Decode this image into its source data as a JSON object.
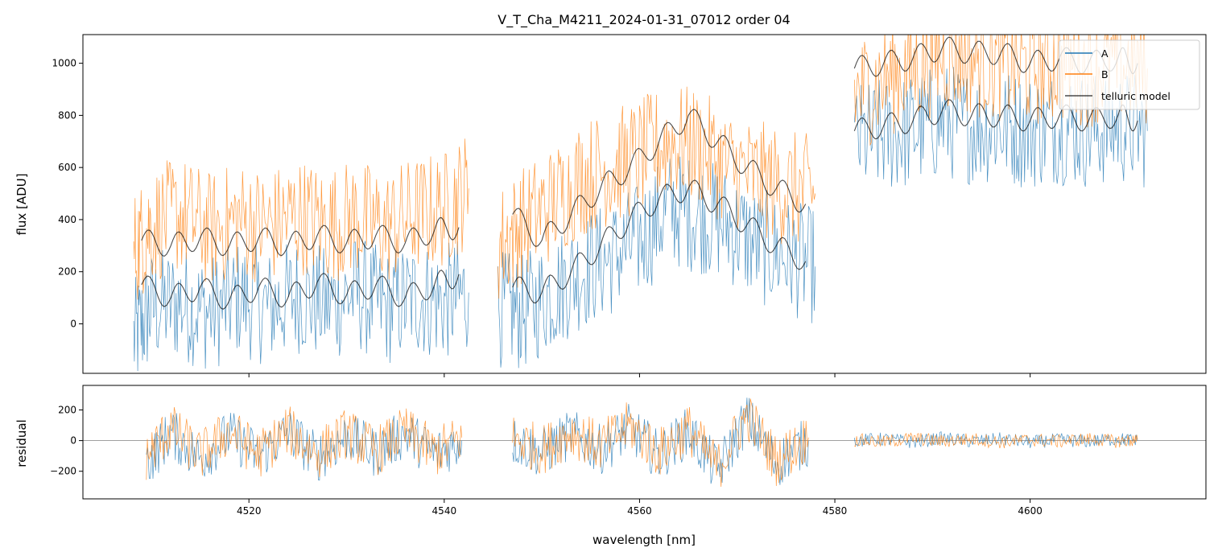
{
  "figure": {
    "title": "V_T_Cha_M4211_2024-01-31_07012  order 04"
  },
  "chart_data": [
    {
      "type": "line",
      "panel": "top",
      "title": "V_T_Cha_M4211_2024-01-31_07012  order 04",
      "xlabel": "",
      "ylabel": "flux [ADU]",
      "xlim": [
        4503,
        4618
      ],
      "ylim": [
        -190,
        1110
      ],
      "y_ticks": [
        "0",
        "200",
        "400",
        "600",
        "800",
        "1000"
      ],
      "y_tick_values": [
        0,
        200,
        400,
        600,
        800,
        1000
      ],
      "x_tick_values": [
        4520,
        4540,
        4560,
        4580,
        4600
      ],
      "x_tick_labels_shown": false,
      "legend": {
        "placement": "top-right",
        "entries": [
          "A",
          "B",
          "telluric model"
        ]
      },
      "series": [
        {
          "name": "A",
          "color": "#1f77b4",
          "segments": [
            {
              "x": [
                4508.2,
                4510,
                4513,
                4516,
                4519,
                4522,
                4525,
                4528,
                4531,
                4534,
                4537,
                4540,
                4542.5
              ],
              "y": [
                -60,
                60,
                80,
                40,
                100,
                60,
                110,
                70,
                120,
                60,
                100,
                80,
                120
              ]
            },
            {
              "x": [
                4545.5,
                4548,
                4551,
                4554,
                4557,
                4560,
                4563,
                4566,
                4569,
                4572,
                4575,
                4578
              ],
              "y": [
                60,
                40,
                120,
                200,
                250,
                320,
                440,
                420,
                380,
                300,
                260,
                220
              ]
            },
            {
              "x": [
                4582,
                4585,
                4588,
                4591,
                4594,
                4597,
                4600,
                4603,
                4606,
                4609,
                4612
              ],
              "y": [
                700,
                720,
                740,
                780,
                760,
                760,
                740,
                760,
                740,
                760,
                740
              ]
            }
          ]
        },
        {
          "name": "B",
          "color": "#ff7f0e",
          "segments": [
            {
              "x": [
                4508.2,
                4510,
                4513,
                4516,
                4519,
                4522,
                4525,
                4528,
                4531,
                4534,
                4537,
                4540,
                4542.5
              ],
              "y": [
                280,
                380,
                420,
                360,
                400,
                370,
                420,
                380,
                410,
                370,
                420,
                440,
                520
              ]
            },
            {
              "x": [
                4545.5,
                4548,
                4551,
                4554,
                4557,
                4560,
                4563,
                4566,
                4569,
                4572,
                4575,
                4578
              ],
              "y": [
                300,
                380,
                460,
                560,
                600,
                640,
                700,
                680,
                600,
                560,
                520,
                500
              ]
            },
            {
              "x": [
                4582,
                4585,
                4588,
                4591,
                4594,
                4597,
                4600,
                4603,
                4606,
                4609,
                4612
              ],
              "y": [
                880,
                940,
                980,
                1040,
                1020,
                1000,
                980,
                1000,
                980,
                1000,
                980
              ]
            }
          ]
        },
        {
          "name": "telluric model",
          "color": "#000000",
          "segments": [
            {
              "x": [
                4509,
                4512,
                4515,
                4518,
                4521,
                4524,
                4527,
                4530,
                4533,
                4536,
                4539,
                4541.5
              ],
              "y": [
                320,
                300,
                330,
                300,
                330,
                300,
                340,
                310,
                340,
                310,
                360,
                370
              ]
            },
            {
              "x": [
                4509,
                4512,
                4515,
                4518,
                4521,
                4524,
                4527,
                4530,
                4533,
                4536,
                4539,
                4541.5
              ],
              "y": [
                150,
                100,
                140,
                90,
                140,
                100,
                160,
                110,
                150,
                100,
                150,
                190
              ]
            },
            {
              "x": [
                4547,
                4550,
                4553,
                4556,
                4559,
                4562,
                4565,
                4568,
                4571,
                4574,
                4577
              ],
              "y": [
                420,
                320,
                420,
                520,
                600,
                700,
                800,
                700,
                600,
                520,
                460
              ]
            },
            {
              "x": [
                4547,
                4550,
                4553,
                4556,
                4559,
                4562,
                4565,
                4568,
                4571,
                4574,
                4577
              ],
              "y": [
                140,
                120,
                200,
                300,
                400,
                480,
                520,
                460,
                380,
                300,
                240
              ]
            },
            {
              "x": [
                4582,
                4585,
                4588,
                4591,
                4594,
                4597,
                4600,
                4603,
                4606,
                4609,
                4611
              ],
              "y": [
                980,
                1000,
                1020,
                1060,
                1040,
                1040,
                1000,
                1020,
                1000,
                1020,
                1000
              ]
            },
            {
              "x": [
                4582,
                4585,
                4588,
                4591,
                4594,
                4597,
                4600,
                4603,
                4606,
                4609,
                4611
              ],
              "y": [
                740,
                760,
                780,
                820,
                800,
                800,
                780,
                800,
                780,
                800,
                780
              ]
            }
          ]
        }
      ]
    },
    {
      "type": "line",
      "panel": "bottom",
      "title": "",
      "xlabel": "wavelength [nm]",
      "ylabel": "residual",
      "xlim": [
        4503,
        4618
      ],
      "ylim": [
        -380,
        360
      ],
      "y_ticks": [
        "−200",
        "0",
        "200"
      ],
      "y_tick_values": [
        -200,
        0,
        200
      ],
      "x_ticks": [
        "4520",
        "4540",
        "4560",
        "4580",
        "4600"
      ],
      "x_tick_values": [
        4520,
        4540,
        4560,
        4580,
        4600
      ],
      "reference_line": 0,
      "series": [
        {
          "name": "A",
          "color": "#1f77b4",
          "segments": [
            {
              "x": [
                4509.5,
                4512,
                4515,
                4518,
                4521,
                4524,
                4527,
                4530,
                4533,
                4536,
                4539,
                4541.8
              ],
              "y": [
                -150,
                50,
                -120,
                40,
                -100,
                60,
                -110,
                30,
                -80,
                50,
                -90,
                0
              ]
            },
            {
              "x": [
                4547,
                4550,
                4553,
                4556,
                4559,
                4562,
                4565,
                4568,
                4571,
                4574,
                4577.3
              ],
              "y": [
                0,
                -80,
                40,
                -60,
                80,
                -100,
                60,
                -200,
                150,
                -150,
                0
              ]
            },
            {
              "x": [
                4582,
                4585,
                4588,
                4591,
                4594,
                4597,
                4600,
                4603,
                4606,
                4609,
                4611
              ],
              "y": [
                0,
                10,
                -10,
                15,
                -5,
                10,
                -10,
                5,
                -5,
                10,
                0
              ]
            }
          ]
        },
        {
          "name": "B",
          "color": "#ff7f0e",
          "segments": [
            {
              "x": [
                4509.5,
                4512,
                4515,
                4518,
                4521,
                4524,
                4527,
                4530,
                4533,
                4536,
                4539,
                4541.8
              ],
              "y": [
                -100,
                80,
                -100,
                60,
                -90,
                70,
                -90,
                50,
                -70,
                60,
                -80,
                20
              ]
            },
            {
              "x": [
                4547,
                4550,
                4553,
                4556,
                4559,
                4562,
                4565,
                4568,
                4571,
                4574,
                4577.3
              ],
              "y": [
                20,
                -60,
                60,
                -40,
                100,
                -80,
                80,
                -180,
                170,
                -130,
                20
              ]
            },
            {
              "x": [
                4582,
                4585,
                4588,
                4591,
                4594,
                4597,
                4600,
                4603,
                4606,
                4609,
                4611
              ],
              "y": [
                5,
                -10,
                15,
                -5,
                10,
                -10,
                5,
                -5,
                10,
                -5,
                5
              ]
            }
          ]
        }
      ]
    }
  ]
}
